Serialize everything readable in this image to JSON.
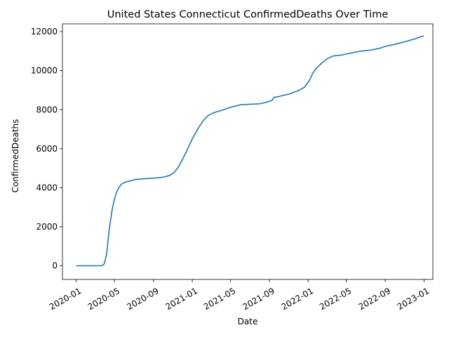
{
  "chart_data": {
    "type": "line",
    "title": "United States Connecticut ConfirmedDeaths Over Time",
    "xlabel": "Date",
    "ylabel": "ConfirmedDeaths",
    "xlim": [
      "2019-11-19",
      "2023-01-29"
    ],
    "ylim": [
      -700,
      12400
    ],
    "x_ticks": [
      "2020-01",
      "2020-05",
      "2020-09",
      "2021-01",
      "2021-05",
      "2021-09",
      "2022-01",
      "2022-05",
      "2022-09",
      "2023-01"
    ],
    "y_ticks": [
      0,
      2000,
      4000,
      6000,
      8000,
      10000,
      12000
    ],
    "grid": false,
    "color": "#1f77b4",
    "series": [
      {
        "points": [
          [
            "2020-01-01",
            0
          ],
          [
            "2020-02-15",
            0
          ],
          [
            "2020-03-15",
            0
          ],
          [
            "2020-03-22",
            10
          ],
          [
            "2020-03-29",
            80
          ],
          [
            "2020-04-02",
            300
          ],
          [
            "2020-04-06",
            600
          ],
          [
            "2020-04-09",
            1000
          ],
          [
            "2020-04-12",
            1500
          ],
          [
            "2020-04-15",
            1950
          ],
          [
            "2020-04-19",
            2400
          ],
          [
            "2020-04-24",
            2900
          ],
          [
            "2020-04-29",
            3300
          ],
          [
            "2020-05-06",
            3700
          ],
          [
            "2020-05-14",
            4000
          ],
          [
            "2020-05-24",
            4200
          ],
          [
            "2020-06-05",
            4300
          ],
          [
            "2020-06-20",
            4350
          ],
          [
            "2020-07-05",
            4420
          ],
          [
            "2020-08-01",
            4460
          ],
          [
            "2020-09-01",
            4490
          ],
          [
            "2020-10-01",
            4540
          ],
          [
            "2020-10-20",
            4620
          ],
          [
            "2020-11-05",
            4780
          ],
          [
            "2020-11-20",
            5100
          ],
          [
            "2020-12-01",
            5450
          ],
          [
            "2020-12-15",
            5900
          ],
          [
            "2021-01-01",
            6500
          ],
          [
            "2021-01-20",
            7050
          ],
          [
            "2021-02-05",
            7450
          ],
          [
            "2021-02-20",
            7700
          ],
          [
            "2021-03-10",
            7850
          ],
          [
            "2021-04-01",
            7950
          ],
          [
            "2021-05-01",
            8120
          ],
          [
            "2021-06-01",
            8250
          ],
          [
            "2021-07-01",
            8280
          ],
          [
            "2021-08-01",
            8300
          ],
          [
            "2021-08-20",
            8370
          ],
          [
            "2021-09-10",
            8480
          ],
          [
            "2021-09-15",
            8630
          ],
          [
            "2021-10-01",
            8680
          ],
          [
            "2021-11-01",
            8800
          ],
          [
            "2021-12-01",
            8980
          ],
          [
            "2021-12-20",
            9150
          ],
          [
            "2022-01-05",
            9500
          ],
          [
            "2022-01-15",
            9850
          ],
          [
            "2022-01-25",
            10100
          ],
          [
            "2022-02-10",
            10350
          ],
          [
            "2022-03-01",
            10600
          ],
          [
            "2022-03-20",
            10750
          ],
          [
            "2022-04-15",
            10800
          ],
          [
            "2022-05-15",
            10900
          ],
          [
            "2022-06-15",
            11000
          ],
          [
            "2022-07-15",
            11050
          ],
          [
            "2022-08-15",
            11150
          ],
          [
            "2022-09-01",
            11250
          ],
          [
            "2022-10-01",
            11350
          ],
          [
            "2022-11-01",
            11480
          ],
          [
            "2022-12-01",
            11620
          ],
          [
            "2022-12-15",
            11700
          ],
          [
            "2022-12-31",
            11780
          ]
        ]
      }
    ]
  }
}
